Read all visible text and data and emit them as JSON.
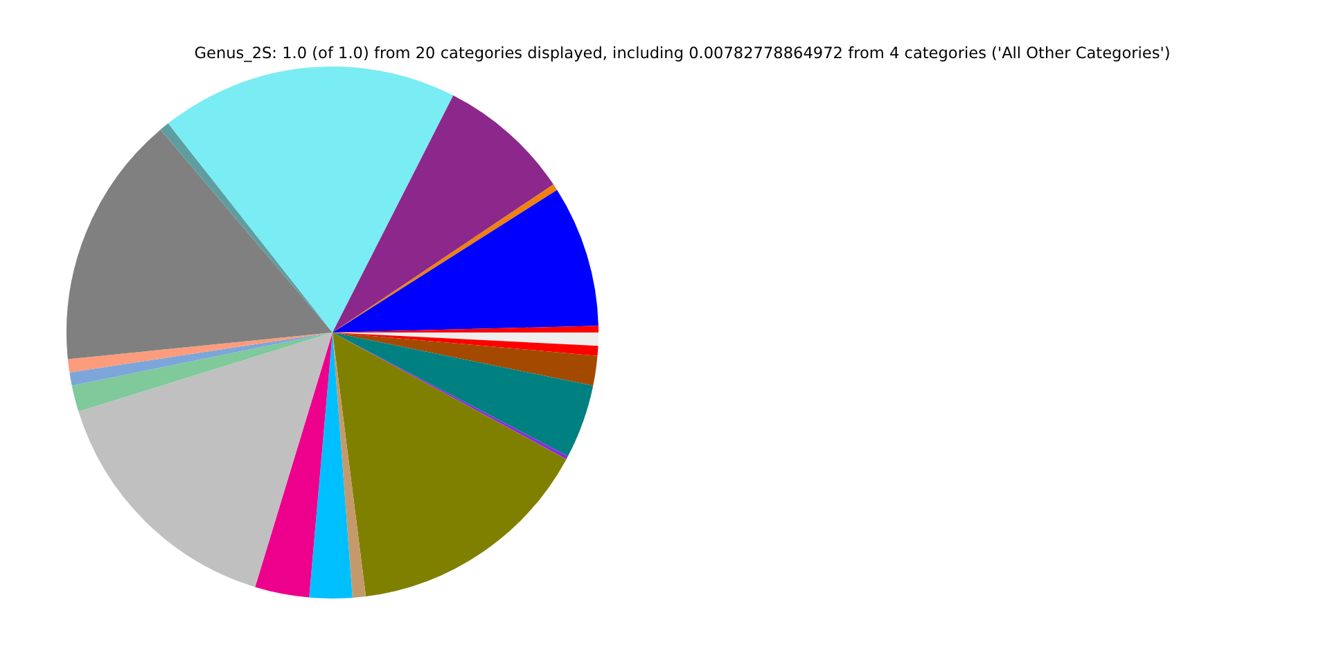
{
  "chart_data": {
    "type": "pie",
    "title": "Genus_2S: 1.0 (of 1.0) from 20 categories displayed, including 0.00782778864972 from 4 categories ('All Other Categories')",
    "categories": [
      null,
      null,
      null,
      null,
      null,
      null,
      null,
      null,
      null,
      null,
      null,
      null,
      null,
      null,
      null,
      null,
      null,
      null,
      null,
      null
    ],
    "values": [
      0.8,
      0.6,
      1.8,
      4.5,
      0.2,
      15.1,
      0.8,
      2.6,
      3.3,
      15.5,
      1.6,
      0.8,
      0.8,
      15.4,
      0.6,
      18.1,
      8.1,
      0.4,
      8.6,
      0.4
    ],
    "colors": [
      "#eeeeee",
      "#ff0000",
      "#a44a00",
      "#008080",
      "#8a2be2",
      "#808000",
      "#c49a6c",
      "#00bfff",
      "#ec008c",
      "#c0c0c0",
      "#7fc99b",
      "#7ca6da",
      "#fc9c7c",
      "#808080",
      "#5f9ea0",
      "#79ecf4",
      "#8c288c",
      "#f08010",
      "#0000ff",
      "#ff0000"
    ]
  }
}
